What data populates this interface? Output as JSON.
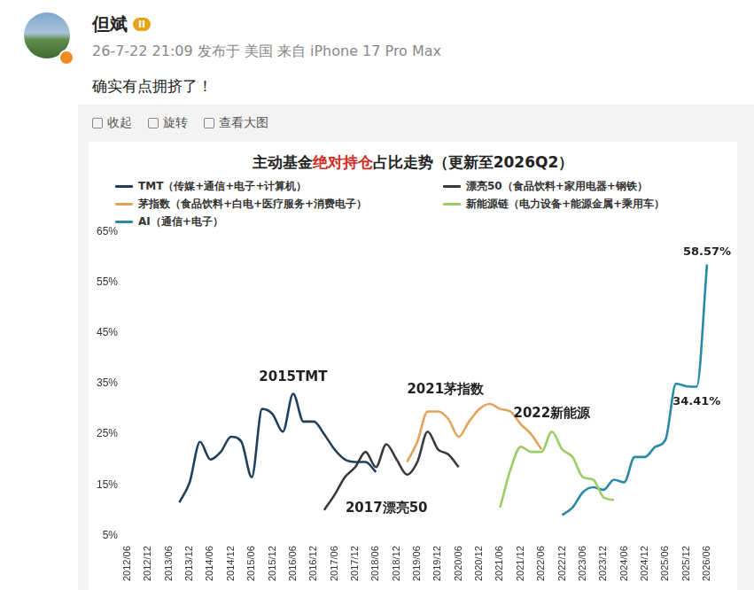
{
  "post": {
    "author": "但斌",
    "badge": "II",
    "meta": "26-7-22 21:09 发布于 美国 来自 iPhone 17 Pro Max",
    "text": "确实有点拥挤了！",
    "actions": [
      "收起",
      "旋转",
      "查看大图"
    ]
  },
  "chart_data": {
    "type": "line",
    "title": "主动基金绝对持仓占比走势（更新至2026Q2）",
    "title_emphasis": "绝对持仓",
    "legend": "top",
    "grid": false,
    "data_labels": true,
    "categories": [
      "2012/06",
      null,
      "2012/12",
      null,
      "2013/06",
      null,
      "2013/12",
      null,
      "2014/06",
      null,
      "2014/12",
      null,
      "2015/06",
      null,
      "2015/12",
      null,
      "2016/06",
      null,
      "2016/12",
      null,
      "2017/06",
      null,
      "2017/12",
      null,
      "2018/06",
      null,
      "2018/12",
      null,
      "2019/06",
      null,
      "2019/12",
      null,
      "2020/06",
      null,
      "2020/12",
      null,
      "2021/06",
      null,
      "2021/12",
      null,
      "2022/06",
      null,
      "2022/12",
      null,
      "2023/06",
      null,
      "2023/12",
      null,
      "2024/06",
      null,
      "2024/12",
      null,
      "2025/06",
      null,
      "2025/12",
      null,
      "2026/06"
    ],
    "ylim": [
      5,
      65
    ],
    "yticks": [
      {
        "value": 5,
        "label": "5%"
      },
      {
        "value": 15,
        "label": "15%"
      },
      {
        "value": 25,
        "label": "25%"
      },
      {
        "value": 35,
        "label": "35%"
      },
      {
        "value": 45,
        "label": "45%"
      },
      {
        "value": 55,
        "label": "55%"
      },
      {
        "value": 65,
        "label": "65%"
      }
    ],
    "series": [
      {
        "name": "TMT（传媒+通信+电子+计算机）",
        "color": "#1f3f5b",
        "values": [
          null,
          null,
          null,
          null,
          null,
          11.5,
          15.5,
          23.5,
          20,
          21.5,
          24.5,
          23.5,
          16.5,
          30,
          29,
          25.5,
          33,
          27.5,
          27.5,
          25,
          22,
          20,
          19.5,
          19.5,
          17.5,
          null,
          null,
          null,
          null,
          null,
          null,
          null,
          null,
          null,
          null,
          null,
          null,
          null,
          null,
          null,
          null,
          null,
          null,
          null,
          null,
          null,
          null,
          null,
          null,
          null,
          null,
          null,
          null,
          null,
          null,
          null,
          null
        ]
      },
      {
        "name": "漂亮50（食品饮料+家用电器+钢铁）",
        "color": "#3a3a3a",
        "values": [
          null,
          null,
          null,
          null,
          null,
          null,
          null,
          null,
          null,
          null,
          null,
          null,
          null,
          null,
          null,
          null,
          null,
          null,
          null,
          10,
          13,
          16.5,
          18.5,
          21.5,
          18.5,
          23,
          20,
          17,
          19.5,
          25.5,
          22,
          21,
          18.5,
          null,
          null,
          null,
          null,
          null,
          null,
          null,
          null,
          null,
          null,
          null,
          null,
          null,
          null,
          null,
          null,
          null,
          null,
          null,
          null,
          null,
          null,
          null,
          null
        ]
      },
      {
        "name": "茅指数（食品饮料+白电+医疗服务+消费电子）",
        "color": "#e3a35c",
        "values": [
          null,
          null,
          null,
          null,
          null,
          null,
          null,
          null,
          null,
          null,
          null,
          null,
          null,
          null,
          null,
          null,
          null,
          null,
          null,
          null,
          null,
          null,
          null,
          null,
          null,
          null,
          null,
          19.5,
          23.5,
          29.5,
          29.5,
          28,
          24.5,
          27.5,
          30,
          31,
          30,
          29.5,
          27,
          25,
          22,
          null,
          null,
          null,
          null,
          null,
          null,
          null,
          null,
          null,
          null,
          null,
          null,
          null,
          null,
          null,
          null
        ]
      },
      {
        "name": "新能源链（电力设备+能源金属+乘用车）",
        "color": "#9ccc65",
        "values": [
          null,
          null,
          null,
          null,
          null,
          null,
          null,
          null,
          null,
          null,
          null,
          null,
          null,
          null,
          null,
          null,
          null,
          null,
          null,
          null,
          null,
          null,
          null,
          null,
          null,
          null,
          null,
          null,
          null,
          null,
          null,
          null,
          null,
          null,
          null,
          null,
          10.5,
          18,
          22.5,
          21.5,
          21.5,
          25.5,
          22,
          20.5,
          16.5,
          16,
          12.5,
          12,
          null,
          null,
          null,
          null,
          null,
          null,
          null,
          null,
          null
        ]
      },
      {
        "name": "AI（通信+电子）",
        "color": "#2a8aa6",
        "values": [
          null,
          null,
          null,
          null,
          null,
          null,
          null,
          null,
          null,
          null,
          null,
          null,
          null,
          null,
          null,
          null,
          null,
          null,
          null,
          null,
          null,
          null,
          null,
          null,
          null,
          null,
          null,
          null,
          null,
          null,
          null,
          null,
          null,
          null,
          null,
          null,
          null,
          null,
          null,
          null,
          null,
          null,
          9,
          10.5,
          13.5,
          14.5,
          14,
          16,
          15.5,
          20.5,
          20.5,
          22.5,
          24,
          35,
          34.5,
          34.41,
          58.57
        ],
        "value_labels": [
          null,
          null,
          null,
          null,
          null,
          null,
          null,
          null,
          null,
          null,
          null,
          null,
          null,
          null,
          null,
          null,
          null,
          null,
          null,
          null,
          null,
          null,
          null,
          null,
          null,
          null,
          null,
          null,
          null,
          null,
          null,
          null,
          null,
          null,
          null,
          null,
          null,
          null,
          null,
          null,
          null,
          null,
          null,
          null,
          null,
          null,
          null,
          null,
          null,
          null,
          null,
          null,
          null,
          null,
          null,
          "34.41%",
          "58.57%"
        ]
      }
    ],
    "annotations": [
      {
        "text": "2015TMT",
        "series": "TMT（传媒+通信+电子+计算机）"
      },
      {
        "text": "2017漂亮50",
        "series": "漂亮50（食品饮料+家用电器+钢铁）"
      },
      {
        "text": "2021茅指数",
        "series": "茅指数（食品饮料+白电+医疗服务+消费电子）"
      },
      {
        "text": "2022新能源",
        "series": "新能源链（电力设备+能源金属+乘用车）"
      }
    ]
  }
}
